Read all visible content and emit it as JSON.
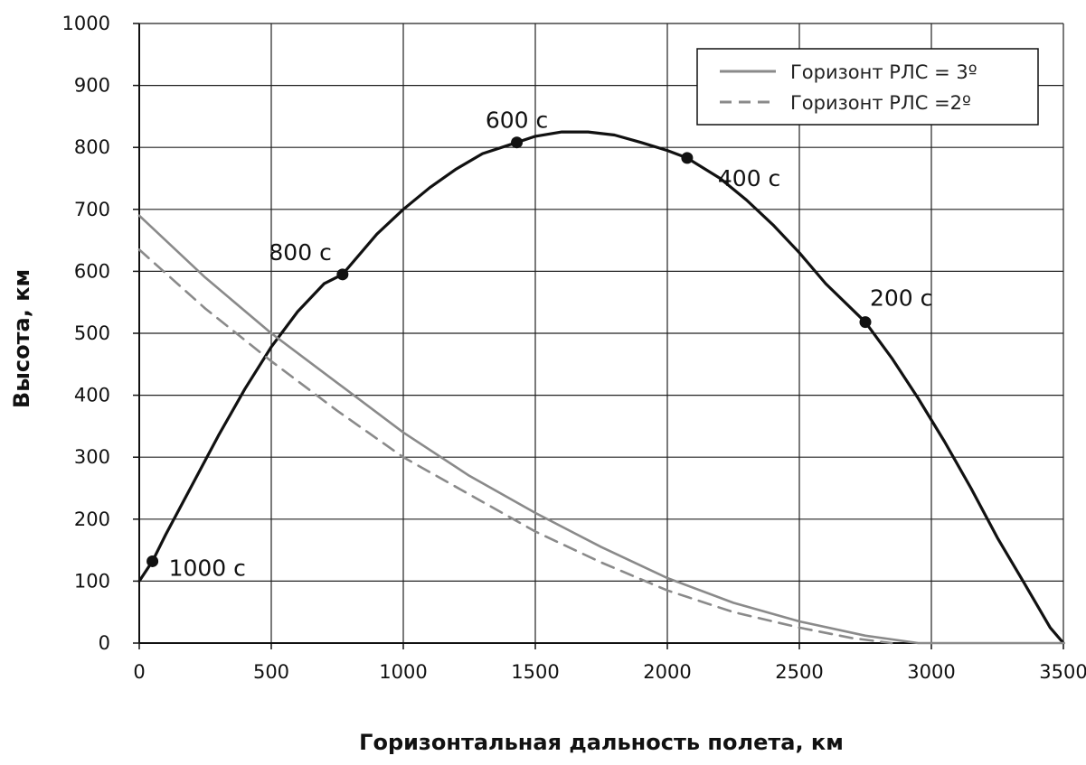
{
  "chart_data": {
    "type": "line",
    "xlabel": "Горизонтальная дальность полета, км",
    "ylabel": "Высота, км",
    "xlim": [
      0,
      3500
    ],
    "ylim": [
      0,
      1000
    ],
    "xticks": [
      0,
      500,
      1000,
      1500,
      2000,
      2500,
      3000,
      3500
    ],
    "yticks": [
      0,
      100,
      200,
      300,
      400,
      500,
      600,
      700,
      800,
      900,
      1000
    ],
    "grid": true,
    "legend_position": "top-right",
    "series": [
      {
        "name": "",
        "role": "trajectory",
        "style": "solid",
        "color": "#111111",
        "x": [
          0,
          50,
          100,
          200,
          300,
          400,
          500,
          600,
          700,
          770,
          900,
          1000,
          1100,
          1200,
          1300,
          1430,
          1500,
          1600,
          1700,
          1800,
          1900,
          2000,
          2075,
          2200,
          2300,
          2400,
          2500,
          2600,
          2750,
          2850,
          2950,
          3050,
          3150,
          3250,
          3350,
          3450,
          3500
        ],
        "y": [
          100,
          132,
          175,
          255,
          335,
          410,
          478,
          535,
          580,
          595,
          660,
          700,
          735,
          765,
          790,
          808,
          818,
          825,
          825,
          820,
          808,
          795,
          783,
          750,
          715,
          675,
          630,
          580,
          518,
          460,
          395,
          325,
          250,
          170,
          98,
          25,
          0
        ]
      },
      {
        "name": "Горизонт РЛС = 3º",
        "style": "solid",
        "color": "#8a8a8a",
        "x": [
          0,
          250,
          500,
          750,
          1000,
          1250,
          1500,
          1750,
          2000,
          2250,
          2500,
          2750,
          2950,
          3500
        ],
        "y": [
          690,
          590,
          500,
          420,
          340,
          270,
          210,
          155,
          105,
          65,
          35,
          12,
          0,
          0
        ]
      },
      {
        "name": "Горизонт РЛС =2º",
        "style": "dashed",
        "color": "#8a8a8a",
        "x": [
          0,
          250,
          500,
          750,
          1000,
          1250,
          1500,
          1750,
          2000,
          2250,
          2500,
          2700,
          2850
        ],
        "y": [
          635,
          540,
          455,
          375,
          300,
          240,
          180,
          130,
          85,
          50,
          25,
          8,
          0
        ]
      }
    ],
    "annotations": [
      {
        "x": 50,
        "y": 132,
        "label": "1000 с",
        "anchor": "right"
      },
      {
        "x": 770,
        "y": 595,
        "label": "800 с",
        "anchor": "above-left"
      },
      {
        "x": 1430,
        "y": 808,
        "label": "600 с",
        "anchor": "above"
      },
      {
        "x": 2075,
        "y": 783,
        "label": "400 с",
        "anchor": "right"
      },
      {
        "x": 2750,
        "y": 518,
        "label": "200 с",
        "anchor": "above-right"
      }
    ]
  }
}
